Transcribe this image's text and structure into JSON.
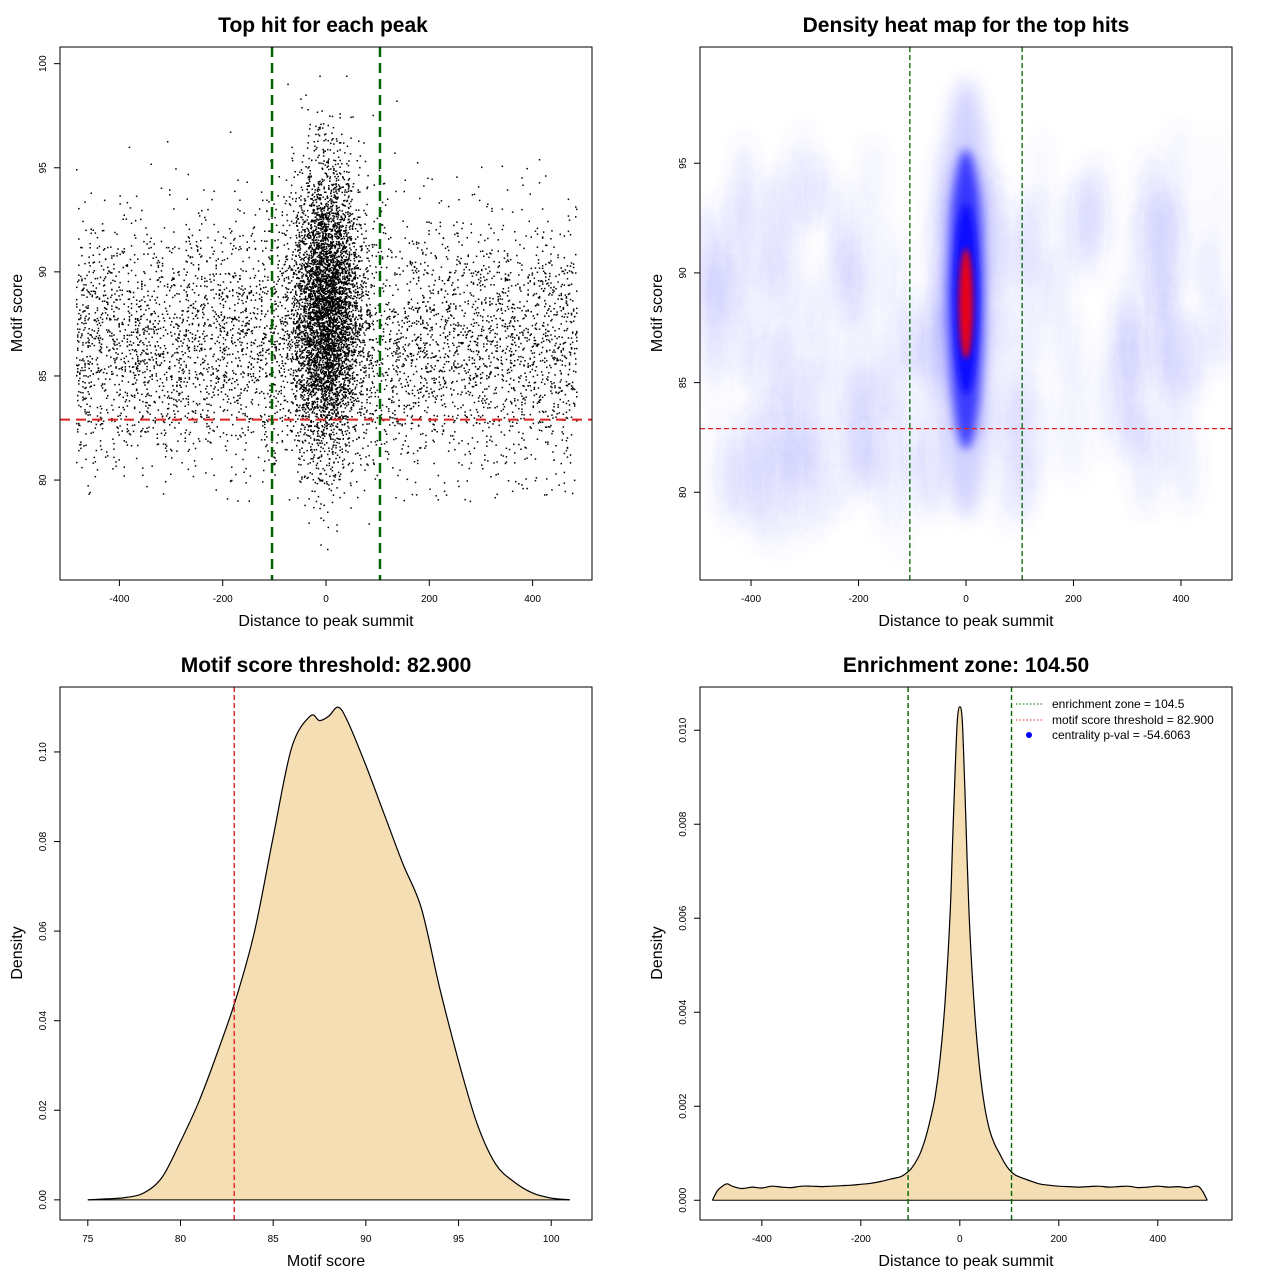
{
  "colors": {
    "threshold_line": "#dd2222",
    "zone_line": "#006400",
    "density_fill": "#f5deb3",
    "heat_low": "#ffffff",
    "heat_mid": "#0000ff",
    "heat_high": "#ff0000"
  },
  "chart_data": [
    {
      "id": "scatter",
      "type": "scatter",
      "title": "Top hit for each peak",
      "xlabel": "Distance to peak summit",
      "ylabel": "Motif score",
      "xlim": [
        -515,
        515
      ],
      "ylim": [
        75.2,
        100.8
      ],
      "xticks": [
        -400,
        -200,
        0,
        200,
        400
      ],
      "yticks": [
        80,
        85,
        90,
        95,
        100
      ],
      "threshold": 82.9,
      "zone": [
        -104.5,
        104.5
      ]
    },
    {
      "id": "heatmap",
      "type": "heatmap",
      "title": "Density heat map for the top hits",
      "xlabel": "Distance to peak summit",
      "ylabel": "Motif score",
      "xlim": [
        -495,
        495
      ],
      "ylim": [
        76,
        100.3
      ],
      "xticks": [
        -400,
        -200,
        0,
        200,
        400
      ],
      "yticks": [
        80,
        85,
        90,
        95
      ],
      "threshold": 82.9,
      "zone": [
        -104.5,
        104.5
      ]
    },
    {
      "id": "score_density",
      "type": "area",
      "title": "Motif score threshold: 82.900",
      "xlabel": "Motif score",
      "ylabel": "Density",
      "xlim": [
        73.5,
        102.2
      ],
      "ylim": [
        -0.0045,
        0.1145
      ],
      "xticks": [
        75,
        80,
        85,
        90,
        95,
        100
      ],
      "yticks": [
        0.0,
        0.02,
        0.04,
        0.06,
        0.08,
        0.1
      ],
      "ytick_labels": [
        "0.00",
        "0.02",
        "0.04",
        "0.06",
        "0.08",
        "0.10"
      ],
      "threshold": 82.9,
      "x": [
        75,
        76,
        77,
        78,
        79,
        80,
        81,
        82,
        83,
        84,
        85,
        86,
        87,
        87.5,
        88,
        88.5,
        89,
        90,
        91,
        92,
        93,
        94,
        95,
        96,
        97,
        98,
        99,
        100,
        101
      ],
      "y": [
        0.0,
        0.0002,
        0.0005,
        0.0015,
        0.005,
        0.013,
        0.022,
        0.033,
        0.045,
        0.06,
        0.081,
        0.101,
        0.108,
        0.107,
        0.108,
        0.11,
        0.107,
        0.097,
        0.086,
        0.075,
        0.065,
        0.047,
        0.031,
        0.017,
        0.008,
        0.004,
        0.0015,
        0.0004,
        0.0
      ]
    },
    {
      "id": "distance_density",
      "type": "area",
      "title": "Enrichment zone: 104.50",
      "xlabel": "Distance to peak summit",
      "ylabel": "Density",
      "xlim": [
        -525,
        550
      ],
      "ylim": [
        -0.00042,
        0.01092
      ],
      "xticks": [
        -400,
        -200,
        0,
        200,
        400
      ],
      "yticks": [
        0.0,
        0.002,
        0.004,
        0.006,
        0.008,
        0.01
      ],
      "ytick_labels": [
        "0.000",
        "0.002",
        "0.004",
        "0.006",
        "0.008",
        "0.010"
      ],
      "threshold": 82.9,
      "zone": [
        -104.5,
        104.5
      ],
      "x": [
        -500,
        -490,
        -480,
        -470,
        -460,
        -440,
        -420,
        -400,
        -380,
        -360,
        -340,
        -320,
        -300,
        -280,
        -260,
        -240,
        -220,
        -200,
        -180,
        -160,
        -140,
        -120,
        -110,
        -100,
        -90,
        -80,
        -70,
        -60,
        -50,
        -40,
        -30,
        -20,
        -15,
        -10,
        -5,
        0,
        5,
        10,
        15,
        20,
        30,
        40,
        50,
        60,
        70,
        80,
        90,
        100,
        110,
        120,
        140,
        160,
        180,
        200,
        220,
        240,
        260,
        280,
        300,
        320,
        340,
        360,
        380,
        400,
        420,
        440,
        460,
        480,
        490,
        500
      ],
      "y": [
        0.0,
        0.0002,
        0.0003,
        0.00035,
        0.0003,
        0.00025,
        0.00028,
        0.00026,
        0.0003,
        0.00028,
        0.00027,
        0.0003,
        0.0003,
        0.00029,
        0.0003,
        0.00031,
        0.00032,
        0.00034,
        0.00036,
        0.0004,
        0.00045,
        0.0005,
        0.00056,
        0.00065,
        0.0008,
        0.001,
        0.0013,
        0.0017,
        0.0022,
        0.003,
        0.0042,
        0.006,
        0.0075,
        0.009,
        0.0102,
        0.0105,
        0.0102,
        0.0088,
        0.0072,
        0.0058,
        0.004,
        0.0028,
        0.002,
        0.0015,
        0.0012,
        0.001,
        0.0008,
        0.00065,
        0.00055,
        0.0005,
        0.00042,
        0.00035,
        0.00032,
        0.0003,
        0.00029,
        0.00028,
        0.00029,
        0.0003,
        0.00028,
        0.00029,
        0.0003,
        0.00027,
        0.00028,
        0.0003,
        0.00028,
        0.00029,
        0.00027,
        0.0003,
        0.0002,
        0.0
      ],
      "legend": [
        {
          "label": "enrichment zone = 104.5",
          "style": "dotted",
          "color": "#006400"
        },
        {
          "label": "motif score threshold = 82.900",
          "style": "dotted",
          "color": "#dd2222"
        },
        {
          "label": "centrality p-val = -54.6063",
          "style": "point",
          "color": "#0000ff"
        }
      ],
      "legend_position": "top-right"
    }
  ]
}
